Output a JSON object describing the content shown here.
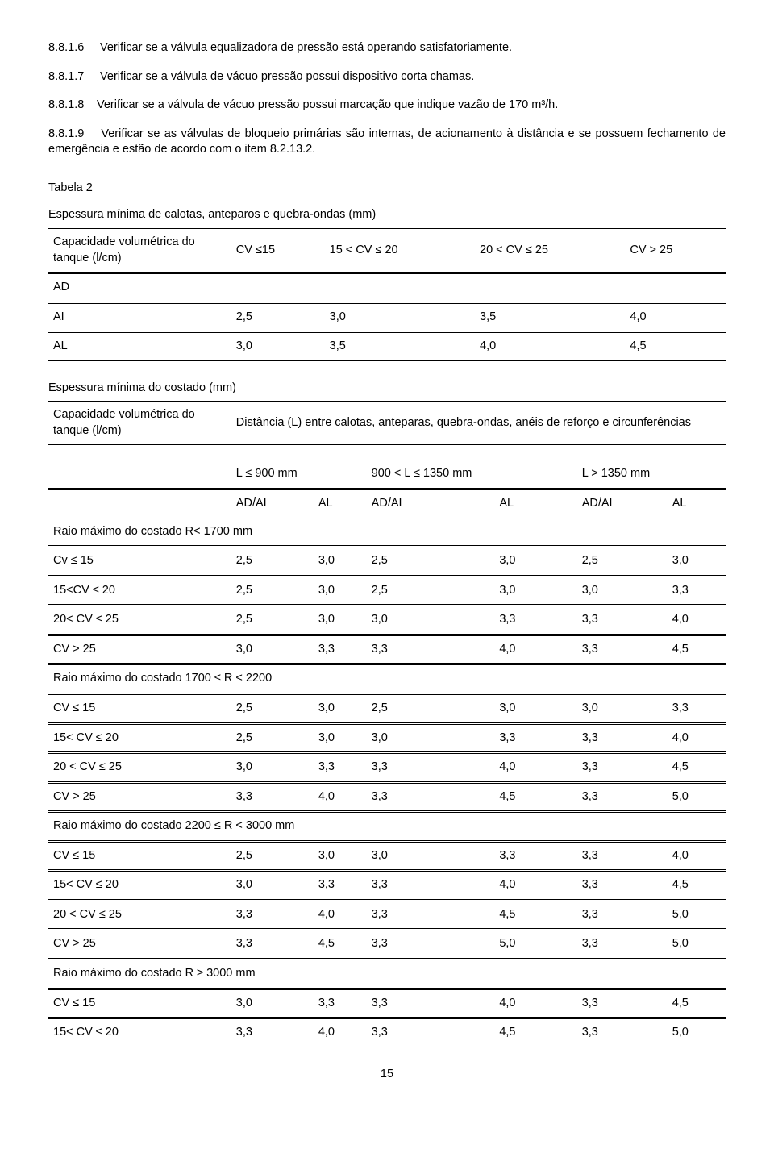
{
  "paragraphs": {
    "p1_num": "8.8.1.6",
    "p1_text": "Verificar se a válvula equalizadora de pressão está operando satisfatoriamente.",
    "p2_num": "8.8.1.7",
    "p2_text": "Verificar se a válvula de vácuo pressão possui dispositivo corta chamas.",
    "p3_num": "8.8.1.8",
    "p3_text": "Verificar se a válvula de vácuo pressão possui marcação que indique vazão de 170 m³/h.",
    "p4_num": "8.8.1.9",
    "p4_text": "Verificar se as válvulas de bloqueio primárias são internas, de acionamento à distância e se possuem fechamento de emergência e estão de acordo com o item 8.2.13.2."
  },
  "tabela2": {
    "label": "Tabela 2",
    "title": "Espessura mínima de calotas, anteparos e quebra-ondas (mm)",
    "header_label": "Capacidade volumétrica do tanque (l/cm)",
    "cols": [
      "CV ≤15",
      "15 < CV ≤ 20",
      "20 < CV ≤ 25",
      "CV > 25"
    ],
    "rows": [
      {
        "label": "AD",
        "v": [
          "",
          "",
          "",
          ""
        ]
      },
      {
        "label": "AI",
        "v": [
          "2,5",
          "3,0",
          "3,5",
          "4,0"
        ]
      },
      {
        "label": "AL",
        "v": [
          "3,0",
          "3,5",
          "4,0",
          "4,5"
        ]
      }
    ]
  },
  "tabela3": {
    "title": "Espessura mínima do costado (mm)",
    "header_left": "Capacidade volumétrica do tanque (l/cm)",
    "header_right": "Distância (L) entre calotas, anteparas, quebra-ondas, anéis de reforço e circunferências",
    "lcols": [
      "L ≤ 900 mm",
      "900 < L ≤  1350 mm",
      "L > 1350 mm"
    ],
    "subcols": [
      "AD/AI",
      "AL",
      "AD/AI",
      "AL",
      "AD/AI",
      "AL"
    ],
    "sections": [
      {
        "header": "Raio máximo do costado       R< 1700 mm",
        "rows": [
          {
            "label": "Cv ≤ 15",
            "v": [
              "2,5",
              "3,0",
              "2,5",
              "3,0",
              "2,5",
              "3,0"
            ]
          },
          {
            "label": "15<CV ≤ 20",
            "v": [
              "2,5",
              "3,0",
              "2,5",
              "3,0",
              "3,0",
              "3,3"
            ]
          },
          {
            "label": "20< CV ≤ 25",
            "v": [
              "2,5",
              "3,0",
              "3,0",
              "3,3",
              "3,3",
              "4,0"
            ]
          },
          {
            "label": "CV > 25",
            "v": [
              "3,0",
              "3,3",
              "3,3",
              "4,0",
              "3,3",
              "4,5"
            ]
          }
        ]
      },
      {
        "header": "Raio máximo do costado      1700 ≤ R < 2200",
        "rows": [
          {
            "label": "CV ≤  15",
            "v": [
              "2,5",
              "3,0",
              "2,5",
              "3,0",
              "3,0",
              "3,3"
            ]
          },
          {
            "label": "15< CV ≤ 20",
            "v": [
              "2,5",
              "3,0",
              "3,0",
              "3,3",
              "3,3",
              "4,0"
            ]
          },
          {
            "label": "20 < CV ≤  25",
            "v": [
              "3,0",
              "3,3",
              "3,3",
              "4,0",
              "3,3",
              "4,5"
            ]
          },
          {
            "label": "CV > 25",
            "v": [
              "3,3",
              "4,0",
              "3,3",
              "4,5",
              "3,3",
              "5,0"
            ]
          }
        ]
      },
      {
        "header": "Raio máximo do costado      2200 ≤ R < 3000 mm",
        "rows": [
          {
            "label": "CV ≤ 15",
            "v": [
              "2,5",
              "3,0",
              "3,0",
              "3,3",
              "3,3",
              "4,0"
            ]
          },
          {
            "label": "15< CV ≤ 20",
            "v": [
              "3,0",
              "3,3",
              "3,3",
              "4,0",
              "3,3",
              "4,5"
            ]
          },
          {
            "label": "20 < CV ≤  25",
            "v": [
              "3,3",
              "4,0",
              "3,3",
              "4,5",
              "3,3",
              "5,0"
            ]
          },
          {
            "label": "CV > 25",
            "v": [
              "3,3",
              "4,5",
              "3,3",
              "5,0",
              "3,3",
              "5,0"
            ]
          }
        ]
      },
      {
        "header": "Raio máximo do costado       R ≥ 3000 mm",
        "rows": [
          {
            "label": "CV ≤ 15",
            "v": [
              "3,0",
              "3,3",
              "3,3",
              "4,0",
              "3,3",
              "4,5"
            ]
          },
          {
            "label": "15< CV ≤ 20",
            "v": [
              "3,3",
              "4,0",
              "3,3",
              "4,5",
              "3,3",
              "5,0"
            ]
          }
        ]
      }
    ]
  },
  "page_number": "15"
}
